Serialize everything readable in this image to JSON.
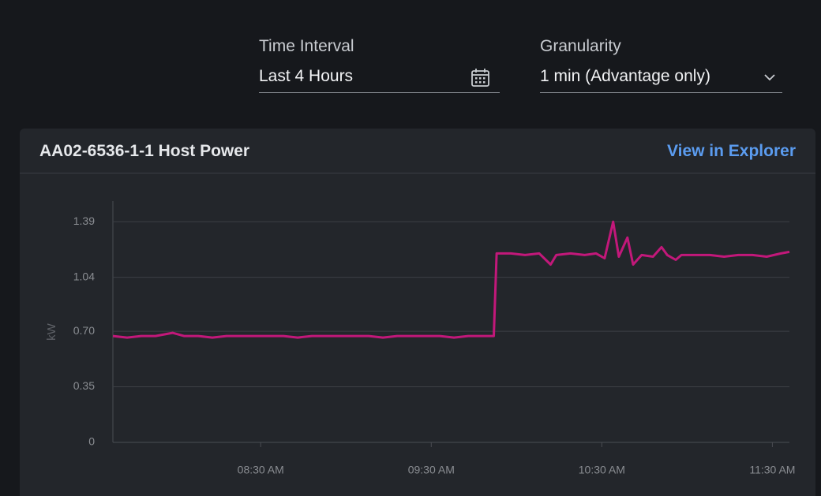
{
  "controls": [
    {
      "label": "Time Interval",
      "value": "Last 4 Hours"
    },
    {
      "label": "Granularity",
      "value": "1 min (Advantage only)"
    }
  ],
  "card": {
    "title": "AA02-6536-1-1 Host Power",
    "link": "View in Explorer"
  },
  "chart_data": {
    "type": "line",
    "y_label": "kW",
    "color": "#c2187a",
    "grid": true,
    "x": [
      "07:38",
      "07:43",
      "07:48",
      "07:53",
      "07:59",
      "08:03",
      "08:08",
      "08:13",
      "08:18",
      "08:23",
      "08:28",
      "08:33",
      "08:38",
      "08:43",
      "08:48",
      "08:53",
      "08:58",
      "09:03",
      "09:08",
      "09:13",
      "09:18",
      "09:23",
      "09:28",
      "09:33",
      "09:38",
      "09:43",
      "09:48",
      "09:52",
      "09:53",
      "09:58",
      "10:03",
      "10:08",
      "10:12",
      "10:14",
      "10:19",
      "10:24",
      "10:28",
      "10:31",
      "10:34",
      "10:36",
      "10:39",
      "10:41",
      "10:44",
      "10:48",
      "10:51",
      "10:53",
      "10:56",
      "10:58",
      "11:03",
      "11:08",
      "11:13",
      "11:18",
      "11:23",
      "11:28",
      "11:33",
      "11:36"
    ],
    "values": [
      0.67,
      0.66,
      0.67,
      0.67,
      0.69,
      0.67,
      0.67,
      0.66,
      0.67,
      0.67,
      0.67,
      0.67,
      0.67,
      0.66,
      0.67,
      0.67,
      0.67,
      0.67,
      0.67,
      0.66,
      0.67,
      0.67,
      0.67,
      0.67,
      0.66,
      0.67,
      0.67,
      0.67,
      1.19,
      1.19,
      1.18,
      1.19,
      1.12,
      1.18,
      1.19,
      1.18,
      1.19,
      1.16,
      1.39,
      1.17,
      1.29,
      1.12,
      1.18,
      1.17,
      1.23,
      1.18,
      1.15,
      1.18,
      1.18,
      1.18,
      1.17,
      1.18,
      1.18,
      1.17,
      1.19,
      1.2
    ],
    "xlim": [
      "07:38",
      "11:36"
    ],
    "xticks": [
      {
        "value": "08:30",
        "label": "08:30 AM"
      },
      {
        "value": "09:30",
        "label": "09:30 AM"
      },
      {
        "value": "10:30",
        "label": "10:30 AM"
      },
      {
        "value": "11:30",
        "label": "11:30 AM"
      }
    ],
    "ylim": [
      0,
      1.52
    ],
    "yticks": [
      0,
      0.35,
      {
        "value": 0.7,
        "label": "0.70"
      },
      1.04,
      1.39
    ]
  }
}
